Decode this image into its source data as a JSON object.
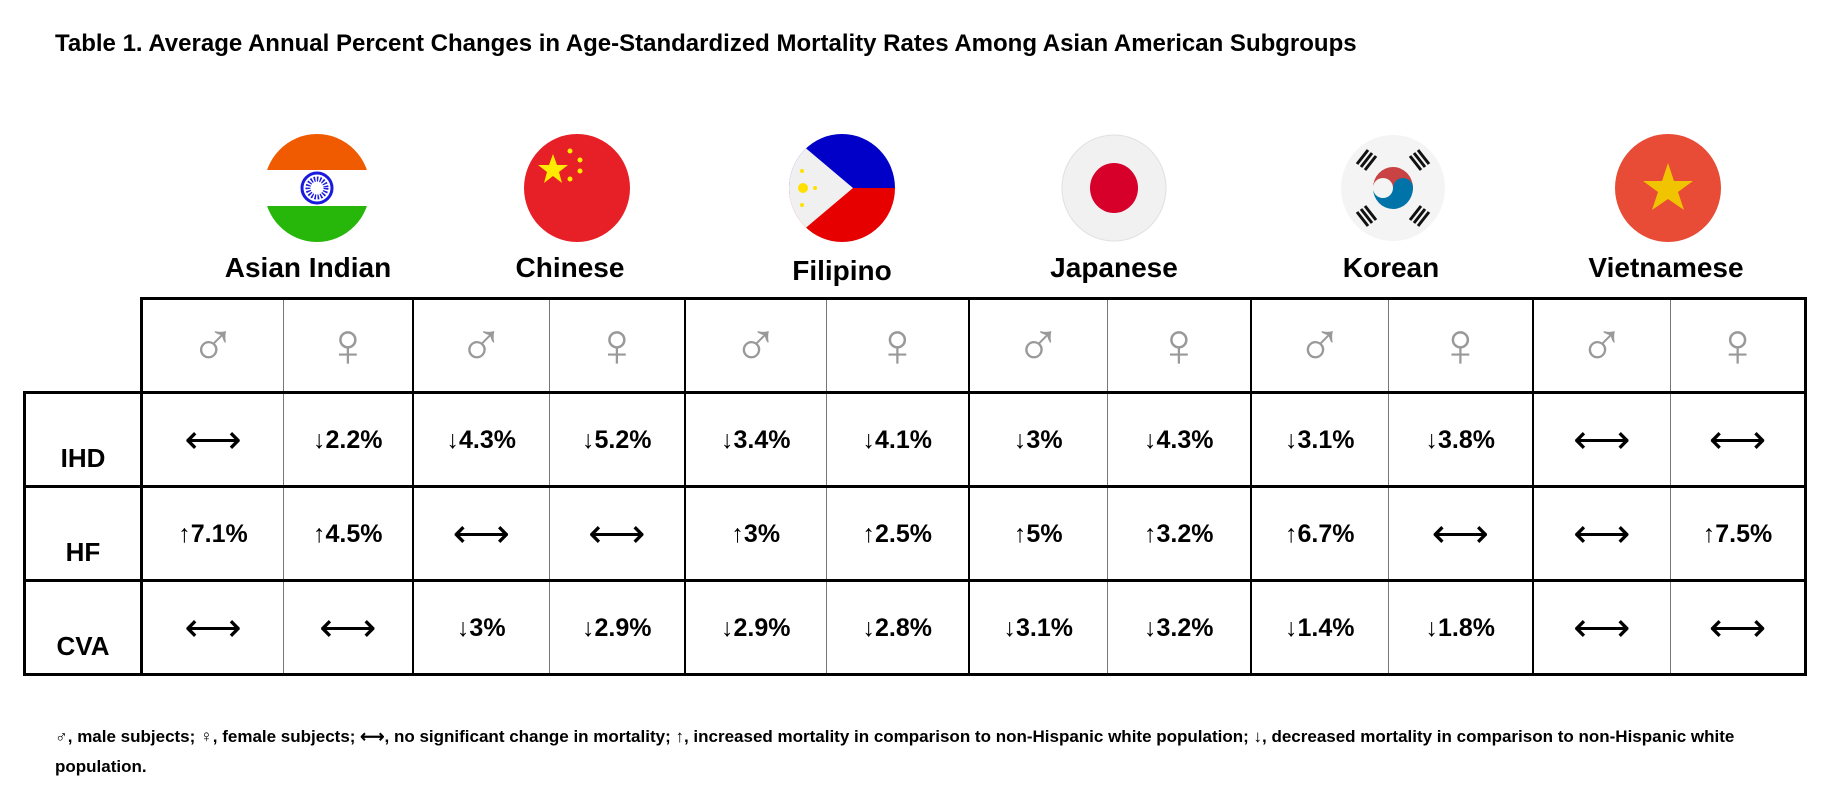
{
  "title": "Table 1. Average Annual Percent Changes in Age-Standardized Mortality Rates Among Asian American Subgroups",
  "countries": [
    {
      "name": "Asian Indian",
      "flag": "india-flag-icon"
    },
    {
      "name": "Chinese",
      "flag": "china-flag-icon"
    },
    {
      "name": "Filipino",
      "flag": "philippines-flag-icon"
    },
    {
      "name": "Japanese",
      "flag": "japan-flag-icon"
    },
    {
      "name": "Korean",
      "flag": "south-korea-flag-icon"
    },
    {
      "name": "Vietnamese",
      "flag": "vietnam-flag-icon"
    }
  ],
  "sex_symbols": {
    "male": "♂",
    "female": "♀"
  },
  "rows": [
    {
      "label": "IHD",
      "cells": [
        "⟷",
        "↓2.2%",
        "↓4.3%",
        "↓5.2%",
        "↓3.4%",
        "↓4.1%",
        "↓3%",
        "↓4.3%",
        "↓3.1%",
        "↓3.8%",
        "⟷",
        "⟷"
      ]
    },
    {
      "label": "HF",
      "cells": [
        "↑7.1%",
        "↑4.5%",
        "⟷",
        "⟷",
        "↑3%",
        "↑2.5%",
        "↑5%",
        "↑3.2%",
        "↑6.7%",
        "⟷",
        "⟷",
        "↑7.5%"
      ]
    },
    {
      "label": "CVA",
      "cells": [
        "⟷",
        "⟷",
        "↓3%",
        "↓2.9%",
        "↓2.9%",
        "↓2.8%",
        "↓3.1%",
        "↓3.2%",
        "↓1.4%",
        "↓1.8%",
        "⟷",
        "⟷"
      ]
    }
  ],
  "footnote": "♂, male subjects; ♀, female subjects; ⟷, no significant change in mortality; ↑,  increased mortality  in comparison to non-Hispanic white population; ↓,  decreased mortality in comparison to non-Hispanic white population."
}
